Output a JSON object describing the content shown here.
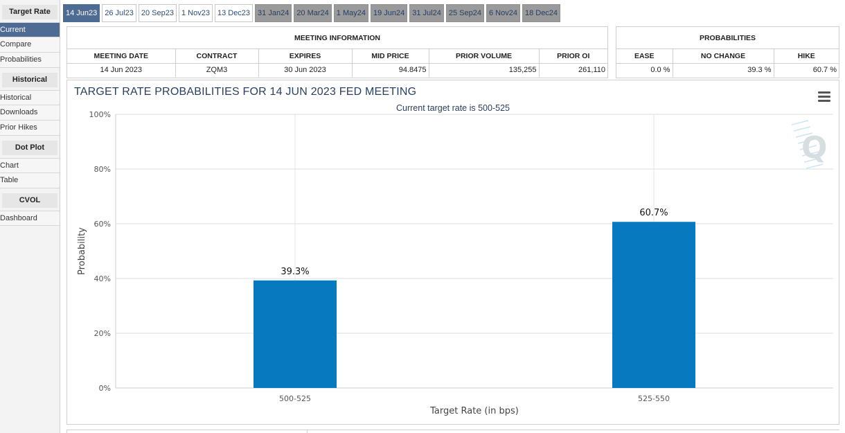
{
  "sidebar": {
    "sections": [
      {
        "title": "Target Rate",
        "items": [
          "Current",
          "Compare",
          "Probabilities"
        ]
      },
      {
        "title": "Historical",
        "items": [
          "Historical",
          "Downloads",
          "Prior Hikes"
        ]
      },
      {
        "title": "Dot Plot",
        "items": [
          "Chart",
          "Table"
        ]
      },
      {
        "title": "CVOL",
        "items": [
          "Dashboard"
        ]
      }
    ],
    "active_item": "Current"
  },
  "tabs": [
    "14 Jun23",
    "26 Jul23",
    "20 Sep23",
    "1 Nov23",
    "13 Dec23",
    "31 Jan24",
    "20 Mar24",
    "1 May24",
    "19 Jun24",
    "31 Jul24",
    "25 Sep24",
    "6 Nov24",
    "18 Dec24"
  ],
  "active_tab": "14 Jun23",
  "meeting_info": {
    "title": "MEETING INFORMATION",
    "headers": [
      "MEETING DATE",
      "CONTRACT",
      "EXPIRES",
      "MID PRICE",
      "PRIOR VOLUME",
      "PRIOR OI"
    ],
    "row": [
      "14 Jun 2023",
      "ZQM3",
      "30 Jun 2023",
      "94.8475",
      "135,255",
      "261,110"
    ]
  },
  "probabilities": {
    "title": "PROBABILITIES",
    "headers": [
      "EASE",
      "NO CHANGE",
      "HIKE"
    ],
    "row": [
      "0.0 %",
      "39.3 %",
      "60.7 %"
    ]
  },
  "chart": {
    "title": "TARGET RATE PROBABILITIES FOR 14 JUN 2023 FED MEETING",
    "subtitle": "Current target rate is 500-525"
  },
  "chart_data": {
    "type": "bar",
    "title": "TARGET RATE PROBABILITIES FOR 14 JUN 2023 FED MEETING",
    "subtitle": "Current target rate is 500-525",
    "categories": [
      "500-525",
      "525-550"
    ],
    "values": [
      39.3,
      60.7
    ],
    "data_labels": [
      "39.3%",
      "60.7%"
    ],
    "xlabel": "Target Rate (in bps)",
    "ylabel": "Probability",
    "ylim": [
      0,
      100
    ],
    "y_ticks": [
      "0%",
      "20%",
      "40%",
      "60%",
      "80%",
      "100%"
    ],
    "bar_color": "#0779bf",
    "grid": true
  },
  "colors": {
    "active": "#4d6b93",
    "bar": "#0779bf",
    "grey_tab": "#9a9a9a"
  }
}
